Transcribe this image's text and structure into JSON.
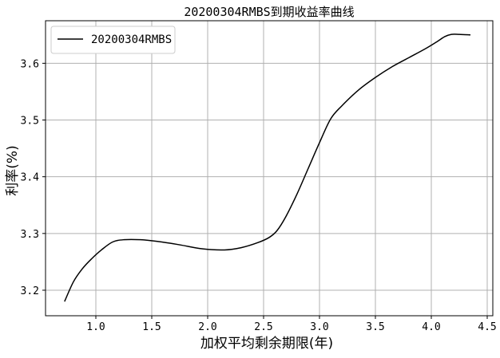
{
  "chart_data": {
    "type": "line",
    "title": "20200304RMBS到期收益率曲线",
    "xlabel": "加权平均剩余期限(年)",
    "ylabel": "利率(%)",
    "xlim": [
      0.55,
      4.55
    ],
    "ylim": [
      3.155,
      3.675
    ],
    "xticks": [
      1.0,
      1.5,
      2.0,
      2.5,
      3.0,
      3.5,
      4.0,
      4.5
    ],
    "xtick_labels": [
      "1.0",
      "1.5",
      "2.0",
      "2.5",
      "3.0",
      "3.5",
      "4.0",
      "4.5"
    ],
    "yticks": [
      3.2,
      3.3,
      3.4,
      3.5,
      3.6
    ],
    "ytick_labels": [
      "3.2",
      "3.3",
      "3.4",
      "3.5",
      "3.6"
    ],
    "grid": true,
    "legend_position": "top-left",
    "series": [
      {
        "name": "20200304RMBS",
        "color": "#000000",
        "x": [
          0.72,
          0.8,
          0.88,
          0.96,
          1.05,
          1.15,
          1.25,
          1.4,
          1.55,
          1.75,
          1.95,
          2.15,
          2.3,
          2.45,
          2.55,
          2.62,
          2.7,
          2.8,
          2.9,
          3.0,
          3.1,
          3.2,
          3.35,
          3.5,
          3.65,
          3.8,
          3.95,
          4.05,
          4.12,
          4.18,
          4.25,
          4.35
        ],
        "y": [
          3.18,
          3.215,
          3.238,
          3.255,
          3.271,
          3.285,
          3.289,
          3.289,
          3.286,
          3.28,
          3.273,
          3.271,
          3.275,
          3.284,
          3.293,
          3.305,
          3.33,
          3.37,
          3.415,
          3.46,
          3.502,
          3.525,
          3.553,
          3.575,
          3.594,
          3.61,
          3.626,
          3.638,
          3.647,
          3.651,
          3.651,
          3.65
        ]
      }
    ]
  }
}
